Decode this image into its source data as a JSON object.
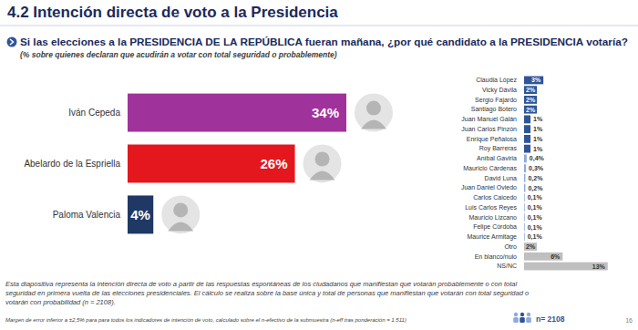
{
  "page": {
    "title": "4.2 Intención directa de voto a la Presidencia",
    "question": "Si las elecciones a la PRESIDENCIA DE LA REPÚBLICA fueran mañana, ¿por qué candidato a la PRESIDENCIA votaría?",
    "subtitle": "(% sobre quienes declaran que acudirán a votar con total seguridad o probablemente)",
    "footnote": [
      "Esta diapositiva representa la intención directa de voto a partir de las respuestas espontáneas de los ciudadanos que manifiestan que votarán probablemente o con total",
      "seguridad en primera vuelta de las elecciones presidenciales. El cálculo se realiza sobre la base única y total de personas que manifiestan que votarán con total seguridad o",
      "votarán con probabilidad (n = 2108)."
    ],
    "margin_note": "Margen de error inferior a ±2,5% para para todos los indicadores de intención de voto, calculado sobre el n-efectivo de la submuestra (n-eff tras ponderación = 1.511)",
    "sample": "n= 2108",
    "page_number": 16
  },
  "chart_data": [
    {
      "type": "bar",
      "orientation": "horizontal",
      "data_labels": true,
      "tick_labels": "y",
      "categories": [
        "Iván Cepeda",
        "Abelardo de la Espriella",
        "Paloma Valencia"
      ],
      "values": [
        34,
        26,
        4
      ],
      "value_labels": [
        "34%",
        "26%",
        "4%"
      ],
      "colors": [
        "#a0339b",
        "#e3171d",
        "#1f3864"
      ]
    },
    {
      "type": "bar",
      "orientation": "horizontal",
      "data_labels": true,
      "tick_labels": "y",
      "categories": [
        "Claudia López",
        "Vicky Dávila",
        "Sergio Fajardo",
        "Santiago Botero",
        "Juan Manuel Galán",
        "Juan Carlos Pinzón",
        "Enrique Peñalosa",
        "Roy Barreras",
        "Aníbal Gaviria",
        "Mauricio Cárdenas",
        "David Luna",
        "Juan Daniel Oviedo",
        "Carlos Caicedo",
        "Luis Carlos Reyes",
        "Mauricio Lizcano",
        "Felipe Córdoba",
        "Maurice Armitage",
        "Otro",
        "En blanco/nulo",
        "NS/NC"
      ],
      "values": [
        3,
        2,
        2,
        2,
        1,
        1,
        1,
        1,
        0.4,
        0.3,
        0.2,
        0.2,
        0.1,
        0.1,
        0.1,
        0.1,
        0.1,
        2,
        6,
        13
      ],
      "value_labels": [
        "3%",
        "2%",
        "2%",
        "2%",
        "1%",
        "1%",
        "1%",
        "1%",
        "0,4%",
        "0,3%",
        "0,2%",
        "0,2%",
        "0,1%",
        "0,1%",
        "0,1%",
        "0,1%",
        "0,1%",
        "2%",
        "6%",
        "13%"
      ],
      "colors": [
        "#2f5597",
        "#2f5597",
        "#2f5597",
        "#2f5597",
        "#2f5597",
        "#2f5597",
        "#2f5597",
        "#2f5597",
        "#8eaadb",
        "#8eaadb",
        "#8eaadb",
        "#8eaadb",
        "#8eaadb",
        "#8eaadb",
        "#8eaadb",
        "#8eaadb",
        "#8eaadb",
        "#bfbfbf",
        "#bfbfbf",
        "#bfbfbf"
      ]
    }
  ]
}
